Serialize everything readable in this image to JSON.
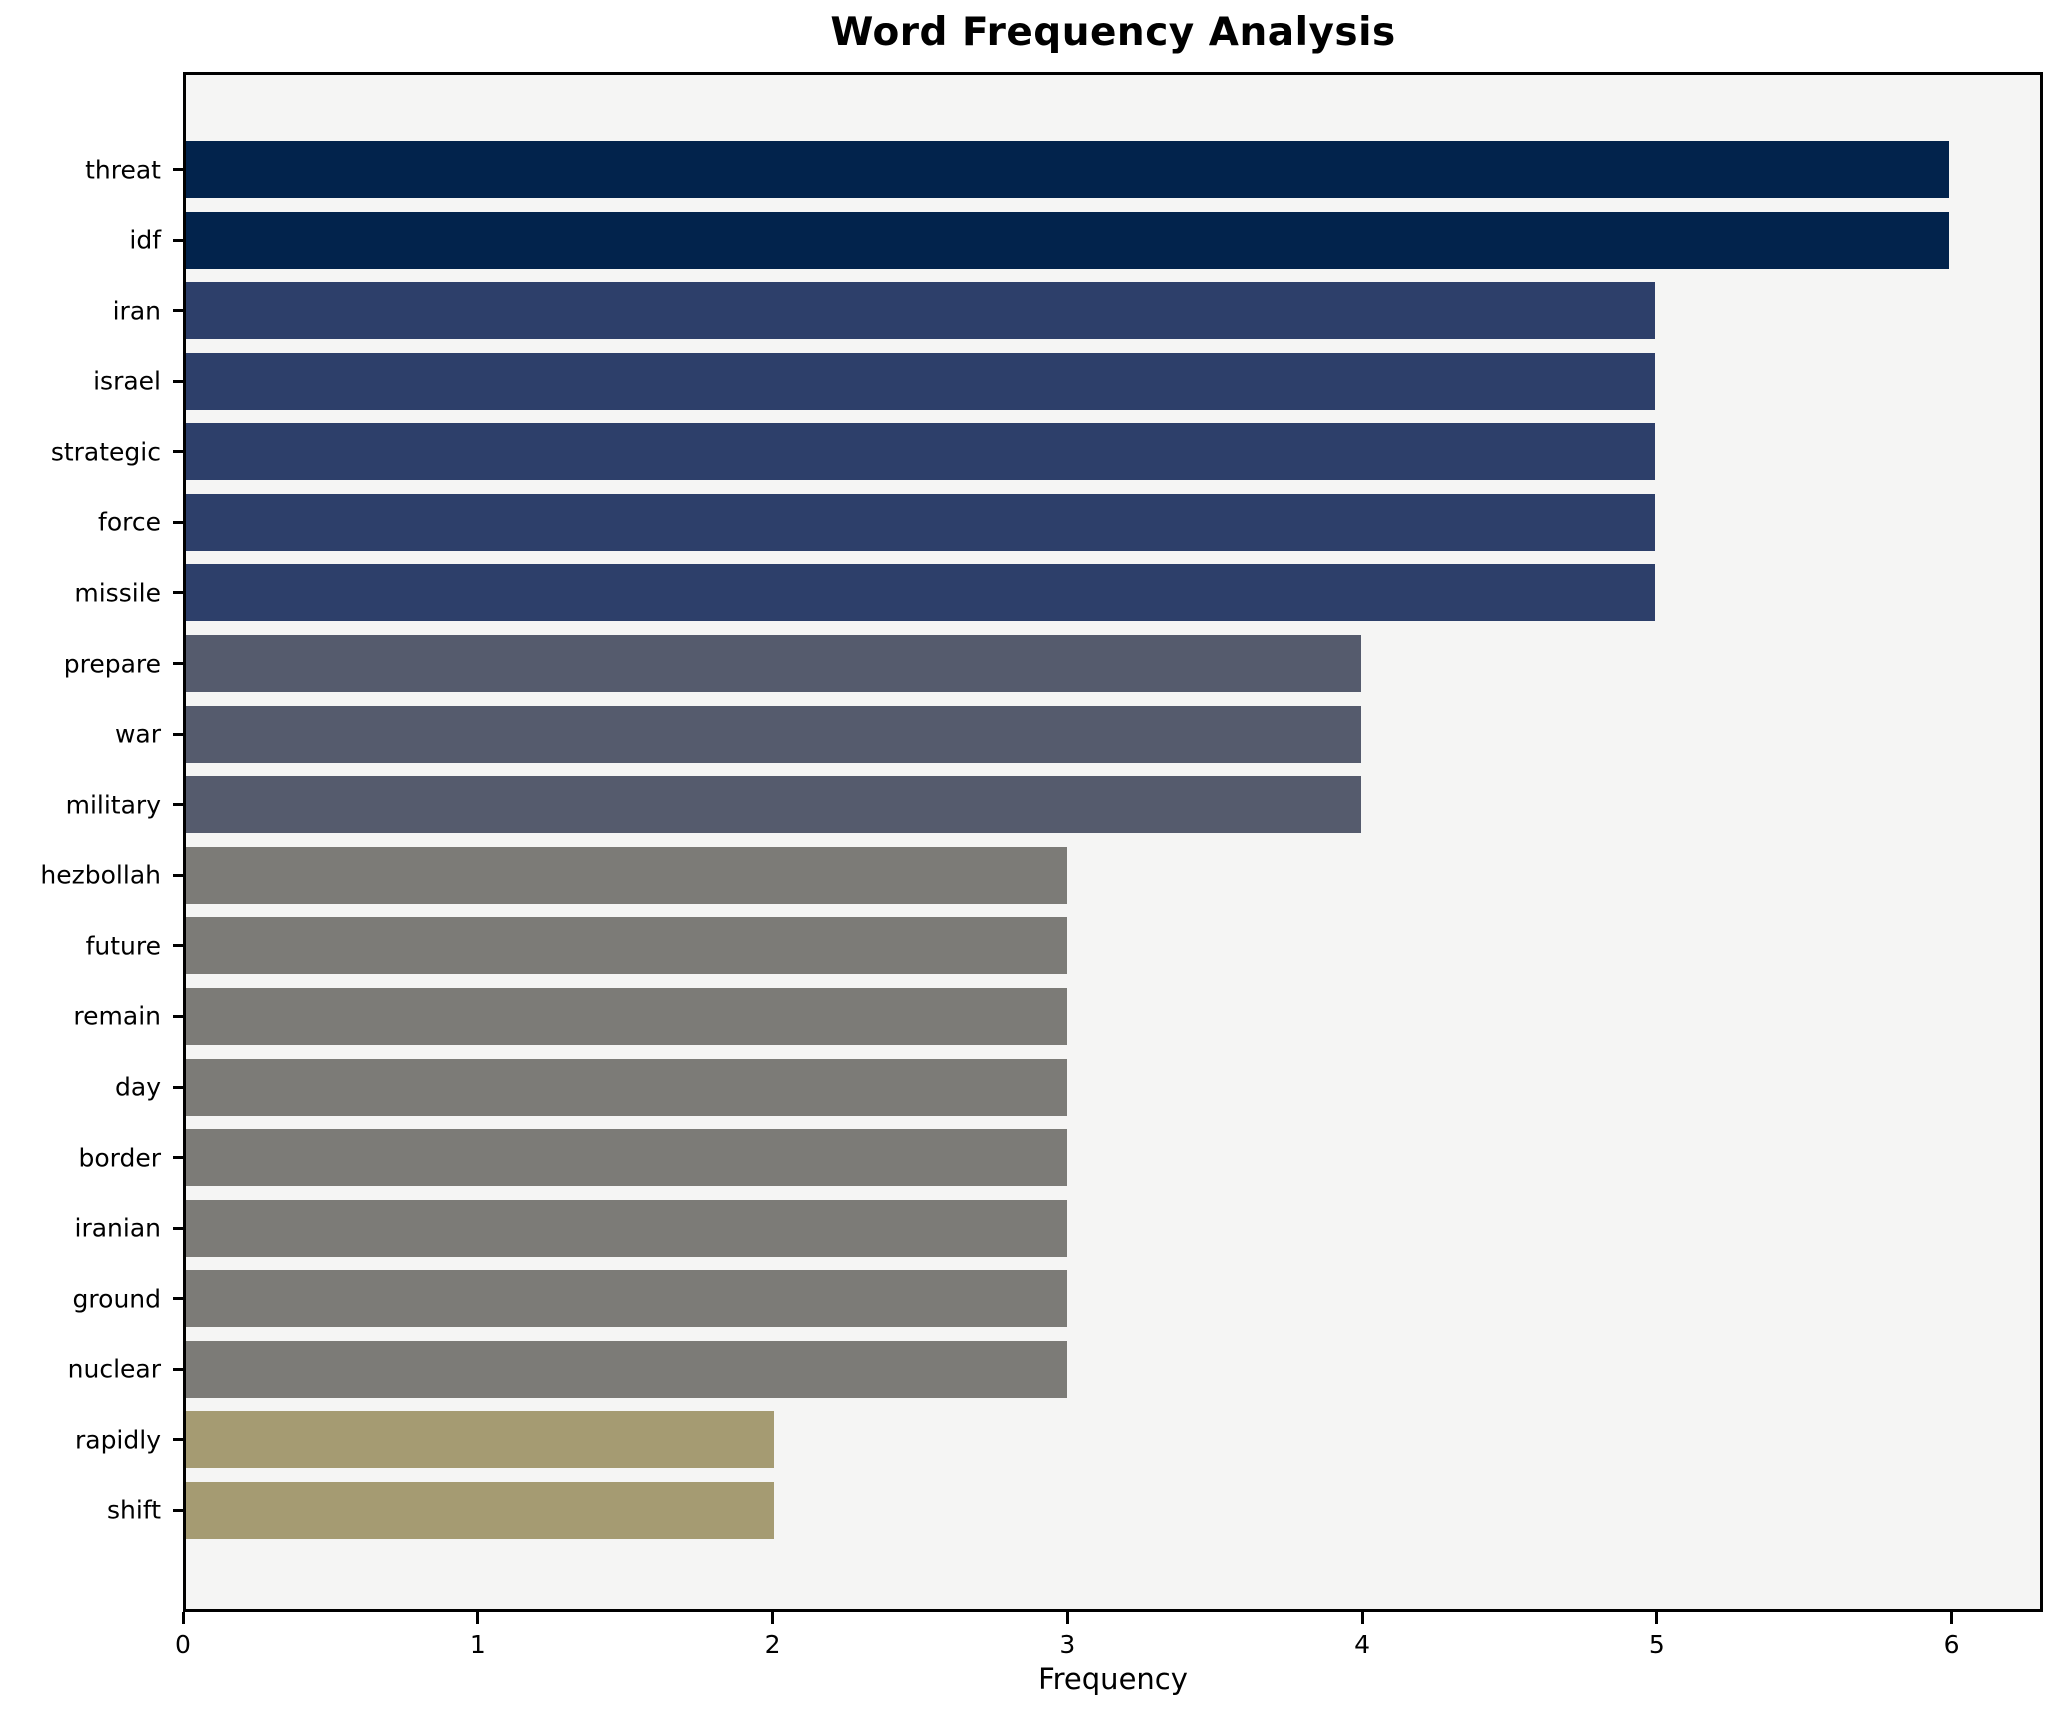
{
  "chart_data": {
    "type": "bar",
    "orientation": "horizontal",
    "title": "Word Frequency Analysis",
    "xlabel": "Frequency",
    "ylabel": "",
    "categories": [
      "threat",
      "idf",
      "iran",
      "israel",
      "strategic",
      "force",
      "missile",
      "prepare",
      "war",
      "military",
      "hezbollah",
      "future",
      "remain",
      "day",
      "border",
      "iranian",
      "ground",
      "nuclear",
      "rapidly",
      "shift"
    ],
    "values": [
      6,
      6,
      5,
      5,
      5,
      5,
      5,
      4,
      4,
      4,
      3,
      3,
      3,
      3,
      3,
      3,
      3,
      3,
      2,
      2
    ],
    "bar_colors": [
      "#02234c",
      "#02234c",
      "#2d3f6a",
      "#2d3f6a",
      "#2d3f6a",
      "#2d3f6a",
      "#2d3f6a",
      "#555b6d",
      "#555b6d",
      "#555b6d",
      "#7c7b77",
      "#7c7b77",
      "#7c7b77",
      "#7c7b77",
      "#7c7b77",
      "#7c7b77",
      "#7c7b77",
      "#7c7b77",
      "#a59b72",
      "#a59b72"
    ],
    "xticks": [
      0,
      1,
      2,
      3,
      4,
      5,
      6
    ],
    "xlim": [
      0,
      6.31
    ],
    "grid": false,
    "legend": null,
    "plot_background": "#f5f5f4",
    "figure_background": "#ffffff",
    "spine_color": "#000000"
  }
}
